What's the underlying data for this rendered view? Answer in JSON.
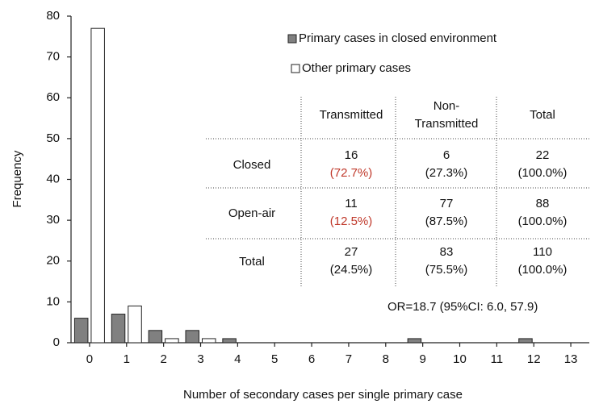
{
  "chart_data": {
    "type": "bar",
    "xlabel": "Number of secondary cases per single primary case",
    "ylabel": "Frequency",
    "categories": [
      "0",
      "1",
      "2",
      "3",
      "4",
      "5",
      "6",
      "7",
      "8",
      "9",
      "10",
      "11",
      "12",
      "13"
    ],
    "series": [
      {
        "name": "Primary cases in closed environment",
        "color": "#808080",
        "values": [
          6,
          7,
          3,
          3,
          1,
          0,
          0,
          0,
          0,
          1,
          0,
          0,
          1,
          0
        ]
      },
      {
        "name": "Other primary cases",
        "color": "#ffffff",
        "values": [
          77,
          9,
          1,
          1,
          0,
          0,
          0,
          0,
          0,
          0,
          0,
          0,
          0,
          0
        ]
      }
    ],
    "ylim": [
      0,
      80
    ],
    "yticks": [
      0,
      10,
      20,
      30,
      40,
      50,
      60,
      70,
      80
    ],
    "legend": "upper right"
  },
  "table": {
    "columns": [
      [
        "Transmitted"
      ],
      [
        "Non-",
        "Transmitted"
      ],
      [
        "Total"
      ]
    ],
    "rows": [
      {
        "label": "Closed",
        "cells": [
          {
            "count": "16",
            "percent": "(72.7%)",
            "percent_color": "#c0392b"
          },
          {
            "count": "6",
            "percent": "(27.3%)"
          },
          {
            "count": "22",
            "percent": "(100.0%)"
          }
        ]
      },
      {
        "label": "Open-air",
        "cells": [
          {
            "count": "11",
            "percent": "(12.5%)",
            "percent_color": "#c0392b"
          },
          {
            "count": "77",
            "percent": "(87.5%)"
          },
          {
            "count": "88",
            "percent": "(100.0%)"
          }
        ]
      },
      {
        "label": "Total",
        "cells": [
          {
            "count": "27",
            "percent": "(24.5%)"
          },
          {
            "count": "83",
            "percent": "(75.5%)"
          },
          {
            "count": "110",
            "percent": "(100.0%)"
          }
        ]
      }
    ]
  },
  "annotation": "OR=18.7 (95%CI: 6.0, 57.9)"
}
